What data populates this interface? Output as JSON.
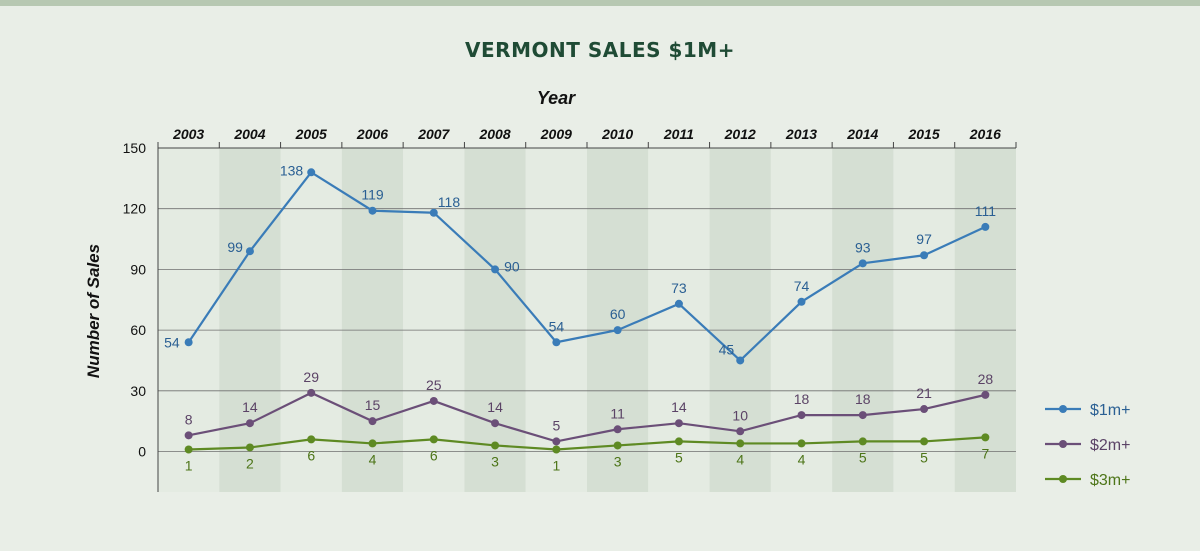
{
  "chart_data": {
    "type": "line",
    "title": "VERMONT SALES $1M+",
    "xlabel": "Year",
    "ylabel": "Number of Sales",
    "categories": [
      "2003",
      "2004",
      "2005",
      "2006",
      "2007",
      "2008",
      "2009",
      "2010",
      "2011",
      "2012",
      "2013",
      "2014",
      "2015",
      "2016"
    ],
    "ylim": [
      -20,
      150
    ],
    "yticks": [
      0,
      30,
      60,
      90,
      120,
      150
    ],
    "legend_position": "right",
    "series": [
      {
        "name": "$1m+",
        "color": "#3a7cb8",
        "label_color": "#2a5f93",
        "values": [
          54,
          99,
          138,
          119,
          118,
          90,
          54,
          60,
          73,
          45,
          74,
          93,
          97,
          111
        ]
      },
      {
        "name": "$2m+",
        "color": "#6b4f78",
        "label_color": "#5b4366",
        "values": [
          8,
          14,
          29,
          15,
          25,
          14,
          5,
          11,
          14,
          10,
          18,
          18,
          21,
          28
        ]
      },
      {
        "name": "$3m+",
        "color": "#5e8a23",
        "label_color": "#4d7518",
        "values": [
          1,
          2,
          6,
          4,
          6,
          3,
          1,
          3,
          5,
          4,
          4,
          5,
          5,
          7
        ]
      }
    ]
  }
}
